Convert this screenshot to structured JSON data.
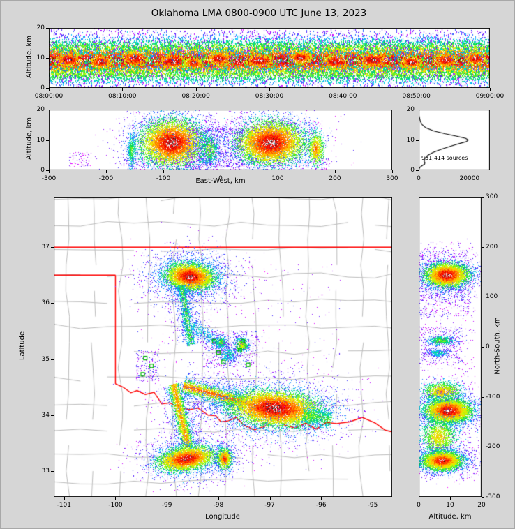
{
  "title": "Oklahoma LMA 0800-0900 UTC June 13, 2023",
  "colors": {
    "background": "#d6d6d6",
    "panel_bg": "#ffffff",
    "axis": "#000000",
    "state_border": "#ff0000",
    "county_line": "#bdbdbd",
    "station_marker": "#00bb00",
    "histogram_line": "#000000",
    "colormap_stops": [
      [
        0,
        "#ff00ff"
      ],
      [
        0.16,
        "#4422ff"
      ],
      [
        0.3,
        "#00ccff"
      ],
      [
        0.44,
        "#00dd44"
      ],
      [
        0.58,
        "#ccff00"
      ],
      [
        0.68,
        "#ffcc00"
      ],
      [
        0.78,
        "#ff6600"
      ],
      [
        0.88,
        "#ff0000"
      ],
      [
        0.95,
        "#bb0000"
      ],
      [
        1,
        "#ffffff"
      ]
    ],
    "core_speckle": [
      "#ffffff",
      "#ffffff",
      "#d8d8d8",
      "#a0a0a0",
      "#606060",
      "#1a1a1a"
    ]
  },
  "chart_data": [
    {
      "id": "time_height",
      "type": "scatter",
      "ylabel": "Altitude, km",
      "x_range": [
        0,
        3600
      ],
      "y_range": [
        0,
        20
      ],
      "x_ticks": [
        {
          "v": 0,
          "label": "08:00:00"
        },
        {
          "v": 600,
          "label": "08:10:00"
        },
        {
          "v": 1200,
          "label": "08:20:00"
        },
        {
          "v": 1800,
          "label": "08:30:00"
        },
        {
          "v": 2400,
          "label": "08:40:00"
        },
        {
          "v": 3000,
          "label": "08:50:00"
        },
        {
          "v": 3600,
          "label": "09:00:00"
        }
      ],
      "y_ticks": [
        0,
        10,
        20
      ],
      "features": [
        {
          "type": "band",
          "x0": 0,
          "x1": 3600,
          "cy": 9.3,
          "sy": 2.7,
          "n": 26000,
          "t": 0.96
        },
        {
          "type": "band",
          "x0": 0,
          "x1": 3600,
          "cy": 13.8,
          "sy": 1.9,
          "n": 3500,
          "t": 0.45
        },
        {
          "type": "band",
          "x0": 0,
          "x1": 3600,
          "cy": 4.6,
          "sy": 1.7,
          "n": 3500,
          "t": 0.5
        },
        {
          "type": "speckle",
          "x0": 0,
          "x1": 3600,
          "y0": 0.2,
          "y1": 19.5,
          "n": 2600,
          "t": 0.22
        },
        {
          "type": "gauss",
          "cx": 160,
          "cy": 9.5,
          "sx": 70,
          "sy": 1.3,
          "n": 450,
          "t": 1
        },
        {
          "type": "gauss",
          "cx": 430,
          "cy": 8.8,
          "sx": 55,
          "sy": 1.2,
          "n": 420,
          "t": 1
        },
        {
          "type": "gauss",
          "cx": 700,
          "cy": 10.0,
          "sx": 65,
          "sy": 1.4,
          "n": 480,
          "t": 1
        },
        {
          "type": "gauss",
          "cx": 1020,
          "cy": 9.0,
          "sx": 80,
          "sy": 1.4,
          "n": 500,
          "t": 1
        },
        {
          "type": "gauss",
          "cx": 1180,
          "cy": 8.4,
          "sx": 45,
          "sy": 1.1,
          "n": 350,
          "t": 1
        },
        {
          "type": "gauss",
          "cx": 1390,
          "cy": 9.8,
          "sx": 60,
          "sy": 1.3,
          "n": 450,
          "t": 1
        },
        {
          "type": "gauss",
          "cx": 1720,
          "cy": 9.1,
          "sx": 70,
          "sy": 1.3,
          "n": 480,
          "t": 1
        },
        {
          "type": "gauss",
          "cx": 2060,
          "cy": 10.1,
          "sx": 55,
          "sy": 1.2,
          "n": 420,
          "t": 1
        },
        {
          "type": "gauss",
          "cx": 2340,
          "cy": 8.8,
          "sx": 65,
          "sy": 1.3,
          "n": 450,
          "t": 1
        },
        {
          "type": "gauss",
          "cx": 2650,
          "cy": 9.4,
          "sx": 75,
          "sy": 1.4,
          "n": 500,
          "t": 1
        },
        {
          "type": "gauss",
          "cx": 2960,
          "cy": 8.7,
          "sx": 55,
          "sy": 1.2,
          "n": 420,
          "t": 1
        },
        {
          "type": "gauss",
          "cx": 3240,
          "cy": 9.3,
          "sx": 60,
          "sy": 1.3,
          "n": 450,
          "t": 1
        },
        {
          "type": "gauss",
          "cx": 3480,
          "cy": 9.9,
          "sx": 55,
          "sy": 1.3,
          "n": 420,
          "t": 1
        }
      ]
    },
    {
      "id": "ew_altitude",
      "type": "scatter",
      "xlabel": "East-West, km",
      "ylabel": "Altitude, km",
      "x_range": [
        -300,
        300
      ],
      "y_range": [
        0,
        20
      ],
      "x_ticks": [
        {
          "v": -300,
          "label": "-300"
        },
        {
          "v": -200,
          "label": "-200"
        },
        {
          "v": -100,
          "label": "-100"
        },
        {
          "v": 0,
          "label": "0"
        },
        {
          "v": 100,
          "label": "100"
        },
        {
          "v": 200,
          "label": "200"
        },
        {
          "v": 300,
          "label": "300"
        }
      ],
      "y_ticks": [
        0,
        10,
        20
      ],
      "features": [
        {
          "type": "gauss",
          "cx": -85,
          "cy": 8.5,
          "sx": 40,
          "sy": 5.5,
          "n": 2200,
          "t": 0.32
        },
        {
          "type": "gauss",
          "cx": 88,
          "cy": 8.5,
          "sx": 44,
          "sy": 5.5,
          "n": 2200,
          "t": 0.32
        },
        {
          "type": "gauss",
          "cx": -85,
          "cy": 9,
          "sx": 26,
          "sy": 3.6,
          "n": 8000,
          "t": 1
        },
        {
          "type": "gauss",
          "cx": 88,
          "cy": 9,
          "sx": 28,
          "sy": 3.4,
          "n": 8000,
          "t": 1
        },
        {
          "type": "gauss",
          "cx": -155,
          "cy": 6.5,
          "sx": 4,
          "sy": 3,
          "n": 550,
          "t": 0.5
        },
        {
          "type": "gauss",
          "cx": -20,
          "cy": 7,
          "sx": 9,
          "sy": 3,
          "n": 800,
          "t": 0.55
        },
        {
          "type": "speckle",
          "x0": -60,
          "x1": 40,
          "y0": 1,
          "y1": 14,
          "n": 900,
          "t": 0.28
        },
        {
          "type": "gauss",
          "cx": 167,
          "cy": 7,
          "sx": 7,
          "sy": 2.8,
          "n": 900,
          "t": 0.8
        },
        {
          "type": "speckle",
          "x0": -170,
          "x1": 190,
          "y0": 0,
          "y1": 4,
          "n": 450,
          "t": 0.18
        },
        {
          "type": "speckle",
          "x0": -140,
          "x1": 180,
          "y0": 12,
          "y1": 17,
          "n": 320,
          "t": 0.2
        },
        {
          "type": "speckle",
          "x0": -265,
          "x1": -225,
          "y0": 1,
          "y1": 6,
          "n": 80,
          "t": 0.15
        }
      ]
    },
    {
      "id": "altitude_histogram",
      "type": "line",
      "annotation": "931,414 sources",
      "x_range": [
        0,
        28000
      ],
      "y_range": [
        0,
        20
      ],
      "x_ticks": [
        {
          "v": 0,
          "label": "0"
        },
        {
          "v": 20000,
          "label": "20000"
        }
      ],
      "y_ticks": [
        0,
        10,
        20
      ],
      "curve": [
        [
          20,
          0
        ],
        [
          18,
          120
        ],
        [
          16,
          700
        ],
        [
          15,
          1400
        ],
        [
          14,
          2800
        ],
        [
          13,
          5800
        ],
        [
          12,
          10500
        ],
        [
          11.2,
          15000
        ],
        [
          10.5,
          18500
        ],
        [
          10,
          19500
        ],
        [
          9.5,
          18800
        ],
        [
          9,
          16800
        ],
        [
          8.5,
          14800
        ],
        [
          8,
          12800
        ],
        [
          7,
          9200
        ],
        [
          6,
          5900
        ],
        [
          5,
          3700
        ],
        [
          4,
          2500
        ],
        [
          3,
          2100
        ],
        [
          2.5,
          2500
        ],
        [
          2,
          2300
        ],
        [
          1.5,
          1300
        ],
        [
          1,
          550
        ],
        [
          0.5,
          150
        ],
        [
          0,
          30
        ]
      ]
    },
    {
      "id": "plan_view",
      "type": "scatter",
      "xlabel": "Longitude",
      "ylabel": "Latitude",
      "x_range": [
        -101.2,
        -94.62
      ],
      "y_range": [
        32.54,
        37.9
      ],
      "x_ticks": [
        {
          "v": -101,
          "label": "-101"
        },
        {
          "v": -100,
          "label": "-100"
        },
        {
          "v": -99,
          "label": "-99"
        },
        {
          "v": -98,
          "label": "-98"
        },
        {
          "v": -97,
          "label": "-97"
        },
        {
          "v": -96,
          "label": "-96"
        },
        {
          "v": -95,
          "label": "-95"
        }
      ],
      "y_ticks": [
        33,
        34,
        35,
        36,
        37
      ],
      "county_grid": {
        "lon_step": 0.52,
        "lat_step": 0.46,
        "jitter": 0.1,
        "skip": 0.12,
        "seed": 12345
      },
      "state_borders": [
        [
          [
            -101.2,
            37
          ],
          [
            -94.62,
            37
          ]
        ],
        [
          [
            -101.2,
            36.5
          ],
          [
            -100,
            36.5
          ]
        ],
        [
          [
            -100,
            36.5
          ],
          [
            -100,
            34.56
          ]
        ],
        [
          [
            -100,
            34.56
          ],
          [
            -99.85,
            34.5
          ],
          [
            -99.7,
            34.4
          ],
          [
            -99.58,
            34.44
          ],
          [
            -99.42,
            34.37
          ],
          [
            -99.25,
            34.41
          ],
          [
            -99.1,
            34.2
          ],
          [
            -98.95,
            34.22
          ],
          [
            -98.75,
            34.13
          ],
          [
            -98.55,
            34.1
          ],
          [
            -98.4,
            34.13
          ],
          [
            -98.2,
            34.0
          ],
          [
            -98.05,
            33.99
          ],
          [
            -97.95,
            33.88
          ],
          [
            -97.8,
            33.9
          ],
          [
            -97.65,
            33.96
          ],
          [
            -97.5,
            33.82
          ],
          [
            -97.3,
            33.74
          ],
          [
            -97.1,
            33.8
          ],
          [
            -96.9,
            33.94
          ],
          [
            -96.7,
            33.82
          ],
          [
            -96.5,
            33.77
          ],
          [
            -96.3,
            33.86
          ],
          [
            -96.1,
            33.75
          ],
          [
            -95.9,
            33.87
          ],
          [
            -95.7,
            33.85
          ],
          [
            -95.45,
            33.88
          ],
          [
            -95.2,
            33.96
          ],
          [
            -94.95,
            33.86
          ],
          [
            -94.75,
            33.73
          ],
          [
            -94.62,
            33.7
          ]
        ]
      ],
      "stations": [
        [
          -99.42,
          35.02
        ],
        [
          -99.3,
          34.88
        ],
        [
          -99.47,
          34.73
        ],
        [
          -98.08,
          35.32
        ],
        [
          -97.52,
          35.32
        ],
        [
          -97.58,
          35.16
        ],
        [
          -97.9,
          34.95
        ],
        [
          -97.42,
          34.9
        ],
        [
          -98.0,
          35.12
        ]
      ],
      "features": [
        {
          "type": "gauss",
          "cx": -98.55,
          "cy": 36.47,
          "sx": 0.45,
          "sy": 0.26,
          "n": 2200,
          "t": 0.32
        },
        {
          "type": "gauss",
          "cx": -98.55,
          "cy": 36.47,
          "sx": 0.22,
          "sy": 0.11,
          "rot": -5,
          "n": 6000,
          "t": 1
        },
        {
          "type": "trail",
          "x1": -98.72,
          "y1": 36.32,
          "x2": -98.52,
          "y2": 35.25,
          "w": 0.05,
          "n": 1100,
          "t": 0.5
        },
        {
          "type": "trail",
          "x1": -98.72,
          "y1": 36.32,
          "x2": -98.52,
          "y2": 35.25,
          "w": 0.16,
          "n": 500,
          "t": 0.24
        },
        {
          "type": "trail",
          "x1": -98.5,
          "y1": 35.6,
          "x2": -98.0,
          "y2": 35.28,
          "w": 0.07,
          "n": 450,
          "t": 0.35
        },
        {
          "type": "gauss",
          "cx": -97.95,
          "cy": 35.3,
          "sx": 0.06,
          "sy": 0.05,
          "n": 420,
          "t": 0.55
        },
        {
          "type": "gauss",
          "cx": -97.55,
          "cy": 35.25,
          "sx": 0.07,
          "sy": 0.06,
          "n": 520,
          "t": 0.65
        },
        {
          "type": "gauss",
          "cx": -97.8,
          "cy": 35.08,
          "sx": 0.1,
          "sy": 0.08,
          "n": 380,
          "t": 0.4
        },
        {
          "type": "speckle",
          "x0": -98.3,
          "x1": -97.2,
          "y0": 34.85,
          "y1": 35.5,
          "n": 550,
          "t": 0.26
        },
        {
          "type": "trail",
          "x1": -98.68,
          "y1": 34.52,
          "x2": -97.45,
          "y2": 34.22,
          "w": 0.18,
          "n": 900,
          "t": 0.28
        },
        {
          "type": "trail",
          "x1": -98.68,
          "y1": 34.52,
          "x2": -97.45,
          "y2": 34.22,
          "w": 0.06,
          "n": 2200,
          "t": 0.8
        },
        {
          "type": "gauss",
          "cx": -96.9,
          "cy": 34.1,
          "sx": 0.7,
          "sy": 0.3,
          "n": 2600,
          "t": 0.32
        },
        {
          "type": "gauss",
          "cx": -96.9,
          "cy": 34.12,
          "sx": 0.42,
          "sy": 0.15,
          "rot": -4,
          "n": 9000,
          "t": 1
        },
        {
          "type": "trail",
          "x1": -96.35,
          "y1": 34.0,
          "x2": -95.8,
          "y2": 33.92,
          "w": 0.09,
          "n": 750,
          "t": 0.5
        },
        {
          "type": "trail",
          "x1": -98.87,
          "y1": 34.55,
          "x2": -98.58,
          "y2": 33.42,
          "w": 0.17,
          "n": 800,
          "t": 0.28
        },
        {
          "type": "trail",
          "x1": -98.87,
          "y1": 34.55,
          "x2": -98.58,
          "y2": 33.42,
          "w": 0.06,
          "n": 2200,
          "t": 0.75
        },
        {
          "type": "gauss",
          "cx": -98.62,
          "cy": 33.22,
          "sx": 0.45,
          "sy": 0.22,
          "n": 1500,
          "t": 0.3
        },
        {
          "type": "gauss",
          "cx": -98.62,
          "cy": 33.22,
          "sx": 0.26,
          "sy": 0.1,
          "rot": 8,
          "n": 5200,
          "t": 0.98
        },
        {
          "type": "gauss",
          "cx": -97.88,
          "cy": 33.22,
          "sx": 0.13,
          "sy": 0.16,
          "n": 300,
          "t": 0.3
        },
        {
          "type": "gauss",
          "cx": -97.88,
          "cy": 33.22,
          "sx": 0.07,
          "sy": 0.09,
          "n": 1100,
          "t": 0.88
        },
        {
          "type": "speckle",
          "x0": -99.6,
          "x1": -99.15,
          "y0": 34.6,
          "y1": 35.15,
          "n": 200,
          "t": 0.22
        },
        {
          "type": "speckle",
          "x0": -99.6,
          "x1": -95.6,
          "y0": 33.0,
          "y1": 36.7,
          "n": 500,
          "t": 0.16
        }
      ]
    },
    {
      "id": "ns_altitude",
      "type": "scatter",
      "xlabel": "Altitude, km",
      "ylabel": "North-South, km",
      "x_range": [
        0,
        20
      ],
      "y_range": [
        -300,
        300
      ],
      "x_ticks": [
        {
          "v": 0,
          "label": "0"
        },
        {
          "v": 10,
          "label": "10"
        },
        {
          "v": 20,
          "label": "20"
        }
      ],
      "y_ticks": [
        300,
        200,
        100,
        0,
        -100,
        -200,
        -300
      ],
      "features": [
        {
          "type": "speckle",
          "x0": 0,
          "x1": 18,
          "y0": -270,
          "y1": 210,
          "n": 600,
          "t": 0.15
        },
        {
          "type": "speckle",
          "x0": 0,
          "x1": 16,
          "y0": 60,
          "y1": 195,
          "n": 650,
          "t": 0.22
        },
        {
          "type": "gauss",
          "cx": 9,
          "cy": 140,
          "sx": 5.5,
          "sy": 22,
          "n": 1600,
          "t": 0.3
        },
        {
          "type": "gauss",
          "cx": 9,
          "cy": 143,
          "sx": 3.2,
          "sy": 11,
          "n": 5500,
          "t": 1
        },
        {
          "type": "gauss",
          "cx": 7,
          "cy": 12,
          "sx": 2.2,
          "sy": 5,
          "n": 600,
          "t": 0.55
        },
        {
          "type": "gauss",
          "cx": 6.5,
          "cy": -12,
          "sx": 2,
          "sy": 4,
          "n": 350,
          "t": 0.4
        },
        {
          "type": "speckle",
          "x0": 0,
          "x1": 14,
          "y0": -35,
          "y1": 40,
          "n": 380,
          "t": 0.24
        },
        {
          "type": "gauss",
          "cx": 7.5,
          "cy": -90,
          "sx": 3,
          "sy": 10,
          "n": 1600,
          "t": 0.75
        },
        {
          "type": "gauss",
          "cx": 9.5,
          "cy": -128,
          "sx": 6,
          "sy": 20,
          "n": 1800,
          "t": 0.3
        },
        {
          "type": "gauss",
          "cx": 9.5,
          "cy": -128,
          "sx": 3.4,
          "sy": 11,
          "n": 7000,
          "t": 1
        },
        {
          "type": "gauss",
          "cx": 6.5,
          "cy": -180,
          "sx": 3,
          "sy": 20,
          "n": 1800,
          "t": 0.7
        },
        {
          "type": "gauss",
          "cx": 7.5,
          "cy": -228,
          "sx": 5.5,
          "sy": 16,
          "n": 1400,
          "t": 0.3
        },
        {
          "type": "gauss",
          "cx": 7.5,
          "cy": -228,
          "sx": 3,
          "sy": 9,
          "n": 5000,
          "t": 0.96
        }
      ]
    }
  ]
}
